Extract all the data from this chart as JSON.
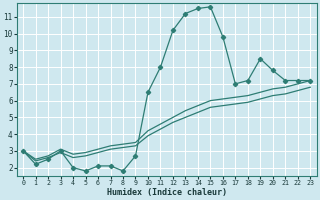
{
  "xlabel": "Humidex (Indice chaleur)",
  "bg_color": "#cfe8ef",
  "grid_color": "#ffffff",
  "line_color": "#2e7d74",
  "series1_x": [
    0,
    1,
    2,
    3,
    4,
    5,
    6,
    7,
    8,
    9,
    10,
    11,
    12,
    13,
    14,
    15,
    16,
    17,
    18,
    19,
    20,
    21,
    22,
    23
  ],
  "series1_y": [
    3.0,
    2.2,
    2.5,
    3.0,
    2.0,
    1.8,
    2.1,
    2.1,
    1.8,
    2.7,
    6.5,
    8.0,
    10.2,
    11.2,
    11.5,
    11.6,
    9.8,
    7.0,
    7.2,
    8.5,
    7.8,
    7.2,
    7.2,
    7.2
  ],
  "series2_x": [
    0,
    1,
    2,
    3,
    4,
    5,
    6,
    7,
    8,
    9,
    10,
    11,
    12,
    13,
    14,
    15,
    16,
    17,
    18,
    19,
    20,
    21,
    22,
    23
  ],
  "series2_y": [
    3.0,
    2.5,
    2.7,
    3.1,
    2.8,
    2.9,
    3.1,
    3.3,
    3.4,
    3.5,
    4.2,
    4.6,
    5.0,
    5.4,
    5.7,
    6.0,
    6.1,
    6.2,
    6.3,
    6.5,
    6.7,
    6.8,
    7.0,
    7.2
  ],
  "series3_x": [
    0,
    1,
    2,
    3,
    4,
    5,
    6,
    7,
    8,
    9,
    10,
    11,
    12,
    13,
    14,
    15,
    16,
    17,
    18,
    19,
    20,
    21,
    22,
    23
  ],
  "series3_y": [
    3.0,
    2.4,
    2.6,
    2.9,
    2.6,
    2.7,
    2.9,
    3.1,
    3.2,
    3.3,
    3.9,
    4.3,
    4.7,
    5.0,
    5.3,
    5.6,
    5.7,
    5.8,
    5.9,
    6.1,
    6.3,
    6.4,
    6.6,
    6.8
  ],
  "xlim": [
    -0.5,
    23.5
  ],
  "ylim": [
    1.5,
    11.8
  ],
  "yticks": [
    2,
    3,
    4,
    5,
    6,
    7,
    8,
    9,
    10,
    11
  ],
  "xticks": [
    0,
    1,
    2,
    3,
    4,
    5,
    6,
    7,
    8,
    9,
    10,
    11,
    12,
    13,
    14,
    15,
    16,
    17,
    18,
    19,
    20,
    21,
    22,
    23
  ]
}
